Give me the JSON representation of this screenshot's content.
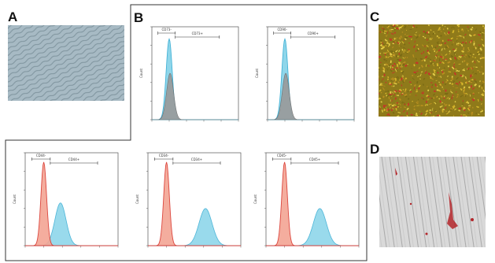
{
  "figure": {
    "panels": {
      "a": {
        "label": "A"
      },
      "b": {
        "label": "B"
      },
      "c": {
        "label": "C"
      },
      "d": {
        "label": "D"
      }
    },
    "colors": {
      "histogram_control": "#9a9a9a",
      "histogram_stained": "#8fd6ea",
      "histogram_isotype": "#f3a594",
      "isotype_line": "#d9332a",
      "stained_line": "#3aaed4",
      "panel_c_dominant": "#b48a1e",
      "panel_d_stain": "#b3262a"
    }
  },
  "histograms": {
    "top_left": {
      "y_axis_label": "Count",
      "gate_label_left": "CD73-",
      "gate_label_right": "CD73+"
    },
    "top_right": {
      "y_axis_label": "Count",
      "gate_label_left": "CD90-",
      "gate_label_right": "CD90+"
    },
    "bottom_left": {
      "y_axis_label": "Count",
      "gate_label_left": "CD44-",
      "gate_label_right": "CD44+"
    },
    "bottom_middle": {
      "y_axis_label": "Count",
      "gate_label_left": "CD34-",
      "gate_label_right": "CD34+"
    },
    "bottom_right": {
      "y_axis_label": "Count",
      "gate_label_left": "CD45-",
      "gate_label_right": "CD45+"
    }
  }
}
